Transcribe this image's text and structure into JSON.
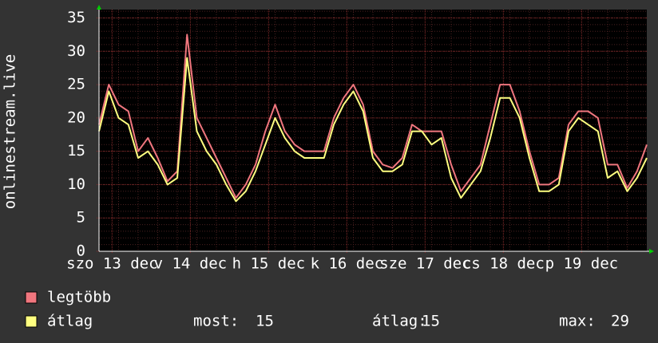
{
  "chart_data": {
    "type": "line",
    "ylabel": "onlinestream.live",
    "x": [
      0,
      3,
      6,
      9,
      12,
      15,
      18,
      21,
      24,
      27,
      30,
      33,
      36,
      39,
      42,
      45,
      48,
      51,
      54,
      57,
      60,
      63,
      66,
      69,
      72,
      75,
      78,
      81,
      84,
      87,
      90,
      93,
      96,
      99,
      102,
      105,
      108,
      111,
      114,
      117,
      120,
      123,
      126,
      129,
      132,
      135,
      138,
      141,
      144,
      147,
      150,
      153,
      156,
      159,
      162,
      165,
      168
    ],
    "xlim": [
      0,
      168
    ],
    "xticks": [
      {
        "value": 4,
        "label": "szo 13 dec"
      },
      {
        "value": 28,
        "label": "v 14 dec"
      },
      {
        "value": 52,
        "label": "h 15 dec"
      },
      {
        "value": 76,
        "label": "k 16 dec"
      },
      {
        "value": 100,
        "label": "sze 17 dec"
      },
      {
        "value": 124,
        "label": "cs 18 dec"
      },
      {
        "value": 148,
        "label": "p 19 dec"
      }
    ],
    "ylim": [
      0,
      35
    ],
    "yticks": [
      0,
      5,
      10,
      15,
      20,
      25,
      30,
      35
    ],
    "grid": true,
    "series": [
      {
        "name": "legtöbb",
        "color": "#f0767e",
        "values": [
          19,
          25,
          22,
          21,
          15,
          17,
          14,
          10.5,
          12,
          32.5,
          20,
          17,
          14,
          11,
          8,
          10,
          13,
          18,
          22,
          18,
          16,
          15,
          15,
          15,
          20,
          23,
          25,
          22,
          15,
          13,
          12.5,
          14,
          19,
          18,
          18,
          18,
          13,
          9,
          11,
          13,
          19,
          25,
          25,
          21,
          15,
          10,
          10,
          11,
          19,
          21,
          21,
          20,
          13,
          13,
          9.5,
          12,
          16
        ]
      },
      {
        "name": "átlag",
        "color": "#ffff80",
        "values": [
          18,
          24,
          20,
          19,
          14,
          15,
          13,
          10,
          11,
          29,
          18,
          15,
          13,
          10,
          7.5,
          9,
          12,
          16,
          20,
          17,
          15,
          14,
          14,
          14,
          19,
          22,
          24,
          21,
          14,
          12,
          12,
          13,
          18,
          18,
          16,
          17,
          11,
          8,
          10,
          12,
          17,
          23,
          23,
          20,
          14,
          9,
          9,
          10,
          18,
          20,
          19,
          18,
          11,
          12,
          9,
          11,
          14
        ]
      }
    ],
    "stats": [
      {
        "label": "most:",
        "value": 15
      },
      {
        "label": "átlag:",
        "value": 15
      },
      {
        "label": "max:",
        "value": 29
      }
    ]
  }
}
